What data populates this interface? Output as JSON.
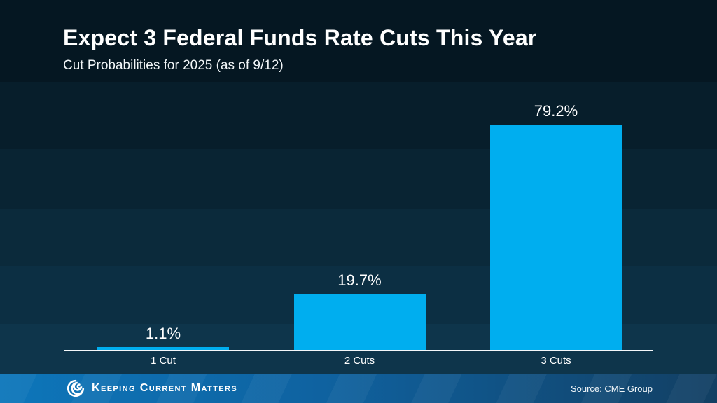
{
  "header": {
    "title": "Expect 3 Federal Funds Rate Cuts This Year",
    "subtitle": "Cut Probabilities for 2025 (as of 9/12)"
  },
  "chart_data": {
    "type": "bar",
    "categories": [
      "1 Cut",
      "2 Cuts",
      "3 Cuts"
    ],
    "values": [
      1.1,
      19.7,
      79.2
    ],
    "value_labels": [
      "1.1%",
      "19.7%",
      "79.2%"
    ],
    "title": "Expect 3 Federal Funds Rate Cuts This Year",
    "subtitle": "Cut Probabilities for 2025 (as of 9/12)",
    "xlabel": "",
    "ylabel": "",
    "ylim": [
      0,
      100
    ],
    "grid": false,
    "legend": false,
    "bar_color": "#00AEEF",
    "axis_line_color": "#F5F8FA"
  },
  "footer": {
    "brand": "Keeping Current Matters",
    "logo_icon": "kcm-swirl-icon",
    "source": "Source: CME Group"
  },
  "colors": {
    "background_top": "#051722",
    "background_bottom": "#0E354B",
    "bar": "#00AEEF",
    "footer_left": "#0D76BA",
    "footer_right": "#123F63",
    "text": "#FFFFFF"
  }
}
